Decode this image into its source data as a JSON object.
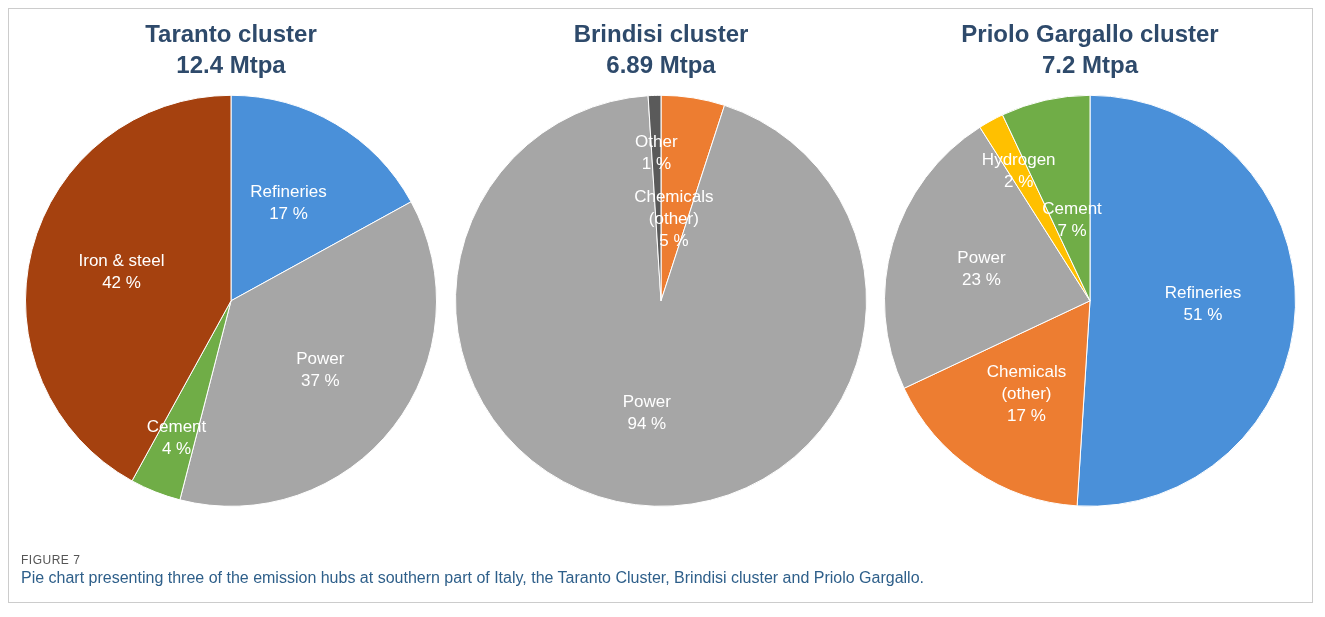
{
  "chart_data": [
    {
      "type": "pie",
      "title": "Taranto cluster",
      "subtitle": "12.4 Mtpa",
      "categories": [
        "Refineries",
        "Power",
        "Cement",
        "Iron & steel"
      ],
      "values": [
        17,
        37,
        4,
        42
      ],
      "value_labels": [
        "17 %",
        "37 %",
        "4 %",
        "42 %"
      ],
      "colors": [
        "#4a90d9",
        "#a6a6a6",
        "#70ad47",
        "#a5410f"
      ],
      "legend": false,
      "annotations": [
        "FIGURE 7",
        "Pie chart presenting three of the emission hubs at southern part of Italy, the Taranto Cluster, Brindisi cluster and Priolo Gargallo."
      ]
    },
    {
      "type": "pie",
      "title": "Brindisi cluster",
      "subtitle": "6.89 Mtpa",
      "categories": [
        "Chemicals (other)",
        "Power",
        "Other"
      ],
      "values": [
        5,
        94,
        1
      ],
      "value_labels": [
        "5 %",
        "94 %",
        "1 %"
      ],
      "colors": [
        "#ed7d31",
        "#a6a6a6",
        "#5a5a5a"
      ],
      "legend": false
    },
    {
      "type": "pie",
      "title": "Priolo Gargallo cluster",
      "subtitle": "7.2 Mtpa",
      "categories": [
        "Refineries",
        "Chemicals (other)",
        "Power",
        "Hydrogen",
        "Cement"
      ],
      "values": [
        51,
        17,
        23,
        2,
        7
      ],
      "value_labels": [
        "51 %",
        "17 %",
        "23 %",
        "2 %",
        "7 %"
      ],
      "colors": [
        "#4a90d9",
        "#ed7d31",
        "#a6a6a6",
        "#ffc000",
        "#70ad47"
      ],
      "legend": false
    }
  ]
}
